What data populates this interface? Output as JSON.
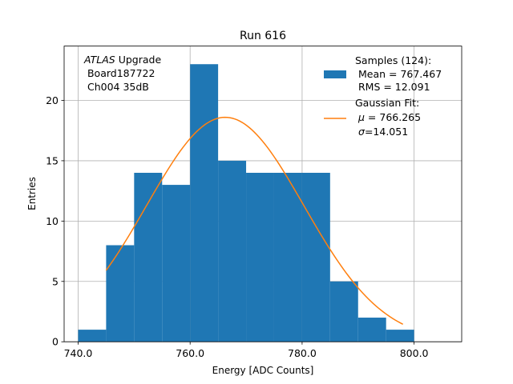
{
  "chart_data": {
    "type": "histogram",
    "title": "Run 616",
    "xlabel": "Energy [ADC Counts]",
    "ylabel": "Entries",
    "xlim": [
      737.5,
      808.5
    ],
    "ylim": [
      0,
      24.5
    ],
    "xticks": [
      740.0,
      760.0,
      780.0,
      800.0
    ],
    "xtick_labels": [
      "740.0",
      "760.0",
      "780.0",
      "800.0"
    ],
    "yticks": [
      0,
      5,
      10,
      15,
      20
    ],
    "ytick_labels": [
      "0",
      "5",
      "10",
      "15",
      "20"
    ],
    "grid": true,
    "bins": [
      {
        "x0": 740,
        "x1": 745,
        "count": 1
      },
      {
        "x0": 745,
        "x1": 750,
        "count": 8
      },
      {
        "x0": 750,
        "x1": 755,
        "count": 14
      },
      {
        "x0": 755,
        "x1": 760,
        "count": 13
      },
      {
        "x0": 760,
        "x1": 765,
        "count": 23
      },
      {
        "x0": 765,
        "x1": 770,
        "count": 15
      },
      {
        "x0": 770,
        "x1": 775,
        "count": 14
      },
      {
        "x0": 775,
        "x1": 780,
        "count": 14
      },
      {
        "x0": 780,
        "x1": 785,
        "count": 14
      },
      {
        "x0": 785,
        "x1": 790,
        "count": 5
      },
      {
        "x0": 790,
        "x1": 795,
        "count": 2
      },
      {
        "x0": 795,
        "x1": 800,
        "count": 1
      }
    ],
    "fit": {
      "type": "gaussian",
      "mu": 766.265,
      "sigma": 14.051,
      "amplitude": 18.6,
      "x_range": [
        745,
        798
      ]
    },
    "colors": {
      "bars": "#1f77b4",
      "fit": "#ff7f0e",
      "grid": "#b0b0b0"
    },
    "annotation": {
      "line1_italic": "ATLAS",
      "line1_rest": " Upgrade",
      "line2": " Board187722",
      "line3": " Ch004 35dB"
    },
    "legend": {
      "position": "top-right",
      "samples_l1": "Samples (124):",
      "samples_l2": " Mean = 767.467",
      "samples_l3": " RMS = 12.091",
      "fit_l1": "Gaussian Fit:",
      "fit_l2_sym": "μ",
      "fit_l2_val": " = 766.265",
      "fit_l3_sym": "σ",
      "fit_l3_val": "=14.051"
    }
  }
}
